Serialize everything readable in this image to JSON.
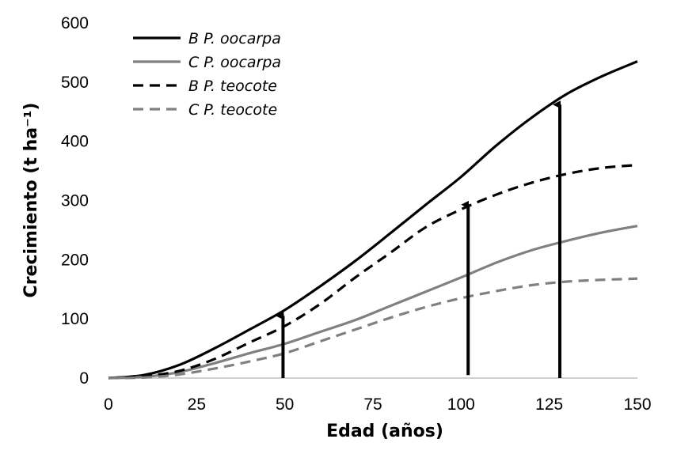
{
  "chart_data": {
    "type": "line",
    "title": "",
    "xlabel": "Edad (años)",
    "ylabel": "Crecimiento (t ha⁻¹)",
    "xlim": [
      0,
      150
    ],
    "ylim": [
      0,
      600
    ],
    "xticks": [
      0,
      25,
      50,
      75,
      100,
      125,
      150
    ],
    "yticks": [
      0,
      100,
      200,
      300,
      400,
      500,
      600
    ],
    "x": [
      0,
      10,
      20,
      30,
      40,
      50,
      60,
      70,
      80,
      90,
      100,
      110,
      120,
      130,
      140,
      150
    ],
    "series": [
      {
        "name": "B P. oocarpa",
        "color": "#000000",
        "dash": "solid",
        "values": [
          0,
          5,
          22,
          50,
          82,
          115,
          155,
          198,
          245,
          293,
          340,
          393,
          440,
          480,
          510,
          535
        ]
      },
      {
        "name": "C P. oocarpa",
        "color": "#808080",
        "dash": "solid",
        "values": [
          0,
          2,
          10,
          25,
          42,
          58,
          78,
          98,
          122,
          146,
          170,
          195,
          216,
          232,
          246,
          257
        ]
      },
      {
        "name": "B P. teocote",
        "color": "#000000",
        "dash": "dashed",
        "values": [
          0,
          3,
          12,
          32,
          60,
          88,
          125,
          170,
          212,
          255,
          285,
          310,
          330,
          345,
          355,
          360
        ]
      },
      {
        "name": "C P. teocote",
        "color": "#808080",
        "dash": "dashed",
        "values": [
          0,
          1,
          6,
          16,
          28,
          42,
          62,
          82,
          102,
          120,
          135,
          147,
          157,
          163,
          166,
          168
        ]
      }
    ],
    "legend_position": "top-left",
    "grid": false,
    "annotations": [
      {
        "type": "arrow",
        "x": 49.5,
        "y_from": 0,
        "y_to": 105
      },
      {
        "type": "arrow",
        "x": 102,
        "y_from": 5,
        "y_to": 293
      },
      {
        "type": "arrow",
        "x": 128,
        "y_from": 0,
        "y_to": 462
      }
    ]
  }
}
